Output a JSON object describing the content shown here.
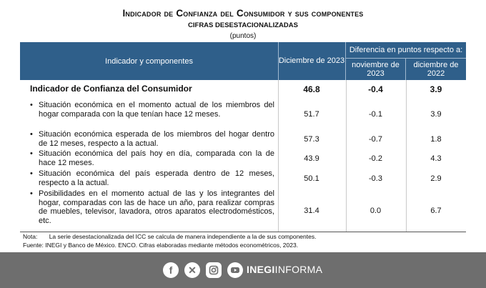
{
  "header": {
    "title": "Indicador de Confianza del Consumidor y sus componentes",
    "subtitle": "CIFRAS DESESTACIONALIZADAS",
    "units": "(puntos)"
  },
  "table": {
    "col_indicator": "Indicador y componentes",
    "col_dic": "Diciembre de 2023",
    "col_diff": "Diferencia en puntos respecto a:",
    "col_nov": "noviembre de 2023",
    "col_dic22": "diciembre de 2022",
    "main_row": {
      "label": "Indicador de Confianza del Consumidor",
      "v1": "46.8",
      "v2": "-0.4",
      "v3": "3.9"
    },
    "rows": [
      {
        "label": "Situación económica en el momento actual de los miembros del hogar comparada con la que tenían hace 12 meses.",
        "v1": "51.7",
        "v2": "-0.1",
        "v3": "3.9"
      },
      {
        "label": "Situación económica esperada de los miembros del hogar dentro de 12 meses, respecto a la actual.",
        "v1": "57.3",
        "v2": "-0.7",
        "v3": "1.8"
      },
      {
        "label": "Situación económica del país hoy en día, comparada con la de hace 12 meses.",
        "v1": "43.9",
        "v2": "-0.2",
        "v3": "4.3"
      },
      {
        "label": "Situación económica del país esperada dentro de 12 meses, respecto a la actual.",
        "v1": "50.1",
        "v2": "-0.3",
        "v3": "2.9"
      },
      {
        "label": "Posibilidades en el momento actual de las y los integrantes del hogar, comparadas con las de hace un año, para realizar compras de muebles, televisor, lavadora, otros aparatos electrodomésticos, etc.",
        "v1": "31.4",
        "v2": "0.0",
        "v3": "6.7"
      }
    ]
  },
  "notes": {
    "nota_label": "Nota:",
    "nota_text": "La serie desestacionalizada del ICC se calcula de manera independiente a la de sus componentes.",
    "fuente_label": "Fuente:",
    "fuente_text": "INEGI y Banco de México. ENCO. Cifras elaboradas mediante métodos econométricos, 2023."
  },
  "footer": {
    "brand_bold": "INEGI",
    "brand_rest": "INFORMA",
    "icons": [
      "facebook-icon",
      "x-icon",
      "instagram-icon",
      "youtube-icon"
    ],
    "bg_color": "#6e6e6e"
  }
}
